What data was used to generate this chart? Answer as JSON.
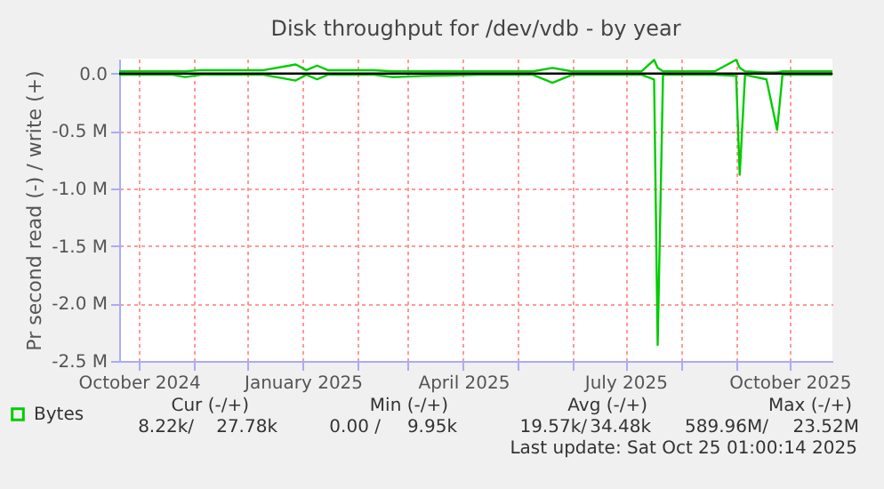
{
  "chart_data": {
    "type": "line",
    "title": "Disk throughput for /dev/vdb - by year",
    "ylabel": "Pr second read (-) / write (+)",
    "x": [
      "2024-09-20",
      "2024-10-20",
      "2024-10-27",
      "2024-11-05",
      "2024-12-10",
      "2024-12-28",
      "2025-01-03",
      "2025-01-09",
      "2025-01-15",
      "2025-02-10",
      "2025-02-20",
      "2025-03-10",
      "2025-04-10",
      "2025-05-10",
      "2025-05-21",
      "2025-06-01",
      "2025-07-10",
      "2025-07-17",
      "2025-07-19",
      "2025-07-22",
      "2025-08-20",
      "2025-09-01",
      "2025-09-03",
      "2025-09-06",
      "2025-09-18",
      "2025-09-24",
      "2025-09-27",
      "2025-10-25"
    ],
    "series": [
      {
        "name": "Bytes",
        "color": "#00cc00",
        "values": [
          0.02,
          0.02,
          0.02,
          0.03,
          0.03,
          0.08,
          0.03,
          0.07,
          0.03,
          0.03,
          0.02,
          0.02,
          0.02,
          0.02,
          0.05,
          0.02,
          0.02,
          0.12,
          0.05,
          0.02,
          0.02,
          0.12,
          0.05,
          0.02,
          0.01,
          0.01,
          0.02,
          0.02
        ]
      },
      {
        "color": "#00cc00",
        "values": [
          -0.01,
          -0.01,
          -0.03,
          -0.01,
          -0.01,
          -0.06,
          -0.01,
          -0.05,
          -0.01,
          -0.01,
          -0.03,
          -0.02,
          -0.01,
          -0.01,
          -0.08,
          -0.01,
          -0.01,
          -0.05,
          -2.36,
          -0.01,
          -0.01,
          -0.02,
          -0.88,
          -0.01,
          -0.05,
          -0.49,
          -0.01,
          -0.01
        ]
      }
    ],
    "xlim": [
      "2024-09-20",
      "2025-10-25"
    ],
    "xticks": [
      {
        "value": "2024-10-01",
        "label": "October 2024"
      },
      {
        "value": "2024-11-01",
        "label": null
      },
      {
        "value": "2024-12-01",
        "label": null
      },
      {
        "value": "2025-01-01",
        "label": "January 2025"
      },
      {
        "value": "2025-02-01",
        "label": null
      },
      {
        "value": "2025-03-01",
        "label": null
      },
      {
        "value": "2025-04-01",
        "label": "April 2025"
      },
      {
        "value": "2025-05-01",
        "label": null
      },
      {
        "value": "2025-06-01",
        "label": null
      },
      {
        "value": "2025-07-01",
        "label": "July 2025"
      },
      {
        "value": "2025-08-01",
        "label": null
      },
      {
        "value": "2025-09-01",
        "label": null
      },
      {
        "value": "2025-10-01",
        "label": "October 2025"
      }
    ],
    "ylim": [
      -2.5,
      0.13
    ],
    "yticks": [
      {
        "value": 0,
        "label": "0.0"
      },
      {
        "value": -0.5,
        "label": "-0.5 M"
      },
      {
        "value": -1,
        "label": "-1.0 M"
      },
      {
        "value": -1.5,
        "label": "-1.5 M"
      },
      {
        "value": -2,
        "label": "-2.0 M"
      },
      {
        "value": -2.5,
        "label": "-2.5 M"
      }
    ],
    "ref_lines": [
      {
        "axis": "y",
        "value": 0,
        "color": "#000000"
      }
    ],
    "grid": true,
    "legend": "bottom left",
    "marker": "none",
    "line_style": "solid",
    "annotations": [
      "Cur (-/+)",
      "Min (-/+)",
      "Avg (-/+)",
      "Max (-/+)",
      "8.22k/",
      "27.78k",
      "0.00 /",
      "9.95k",
      "19.57k/",
      "34.48k",
      "589.96M/",
      "23.52M",
      "Last update: Sat Oct 25 01:00:14 2025"
    ]
  }
}
